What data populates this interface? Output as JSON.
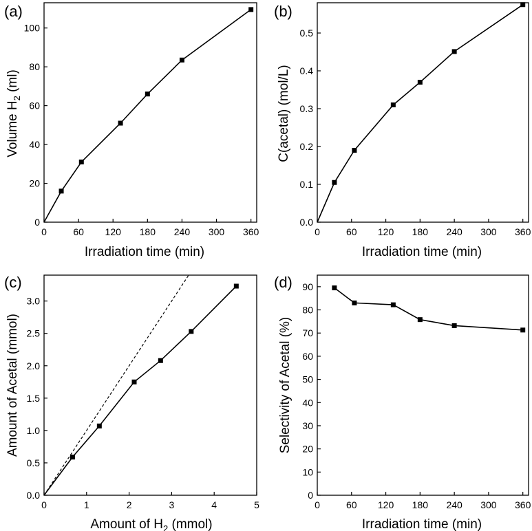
{
  "chart_data": [
    {
      "id": "a",
      "panel_label": "(a)",
      "type": "line",
      "xlabel": "Irradiation time (min)",
      "ylabel": {
        "main": "Volume H",
        "sub": "2",
        "tail": " (ml)"
      },
      "xlim": [
        0,
        370
      ],
      "ylim": [
        0,
        113
      ],
      "xticks": [
        0,
        60,
        120,
        180,
        240,
        300,
        360
      ],
      "xtick_labels": [
        "0",
        "60",
        "120",
        "180",
        "240",
        "300",
        "360"
      ],
      "yticks": [
        0,
        20,
        40,
        60,
        80,
        100
      ],
      "ytick_labels": [
        "0",
        "20",
        "40",
        "60",
        "80",
        "100"
      ],
      "x": [
        0,
        30,
        65,
        133,
        180,
        240,
        360
      ],
      "y": [
        0,
        16,
        31,
        51,
        66,
        83.5,
        109.5
      ],
      "markers_from_index": 1
    },
    {
      "id": "b",
      "panel_label": "(b)",
      "type": "line",
      "xlabel": "Irradiation time (min)",
      "ylabel": {
        "main": "C(acetal) (mol/L)",
        "sub": "",
        "tail": ""
      },
      "xlim": [
        0,
        370
      ],
      "ylim": [
        0,
        0.58
      ],
      "xticks": [
        0,
        60,
        120,
        180,
        240,
        300,
        360
      ],
      "xtick_labels": [
        "0",
        "60",
        "120",
        "180",
        "240",
        "300",
        "360"
      ],
      "yticks": [
        0,
        0.1,
        0.2,
        0.3,
        0.4,
        0.5
      ],
      "ytick_labels": [
        "0.0",
        "0.1",
        "0.2",
        "0.3",
        "0.4",
        "0.5"
      ],
      "x": [
        0,
        30,
        65,
        133,
        180,
        240,
        360
      ],
      "y": [
        0,
        0.105,
        0.19,
        0.31,
        0.37,
        0.451,
        0.575
      ],
      "markers_from_index": 1
    },
    {
      "id": "c",
      "panel_label": "(c)",
      "type": "line",
      "xlabel": {
        "main": "Amount of H",
        "sub": "2",
        "tail": " (mmol)"
      },
      "ylabel": {
        "main": "Amount of Acetal (mmol)",
        "sub": "",
        "tail": ""
      },
      "xlim": [
        0,
        5
      ],
      "ylim": [
        0,
        3.4
      ],
      "xticks": [
        0,
        1,
        2,
        3,
        4,
        5
      ],
      "xtick_labels": [
        "0",
        "1",
        "2",
        "3",
        "4",
        "5"
      ],
      "yticks": [
        0,
        0.5,
        1.0,
        1.5,
        2.0,
        2.5,
        3.0
      ],
      "ytick_labels": [
        "0.0",
        "0.5",
        "1.0",
        "1.5",
        "2.0",
        "2.5",
        "3.0"
      ],
      "x": [
        0,
        0.67,
        1.3,
        2.12,
        2.74,
        3.46,
        4.52
      ],
      "y": [
        0,
        0.59,
        1.07,
        1.75,
        2.08,
        2.53,
        3.23
      ],
      "markers_from_index": 1,
      "reference_line": {
        "x": [
          0,
          3.4
        ],
        "y": [
          0,
          3.4
        ],
        "style": "dashed"
      }
    },
    {
      "id": "d",
      "panel_label": "(d)",
      "type": "line",
      "xlabel": "Irradiation time (min)",
      "ylabel": {
        "main": "Selectivity of Acetal (%)",
        "sub": "",
        "tail": ""
      },
      "xlim": [
        0,
        370
      ],
      "ylim": [
        0,
        95
      ],
      "xticks": [
        0,
        60,
        120,
        180,
        240,
        300,
        360
      ],
      "xtick_labels": [
        "0",
        "60",
        "120",
        "180",
        "240",
        "300",
        "360"
      ],
      "yticks": [
        0,
        10,
        20,
        30,
        40,
        50,
        60,
        70,
        80,
        90
      ],
      "ytick_labels": [
        "0",
        "10",
        "20",
        "30",
        "40",
        "50",
        "60",
        "70",
        "80",
        "90"
      ],
      "x": [
        30,
        65,
        133,
        180,
        240,
        360
      ],
      "y": [
        89.5,
        83,
        82.2,
        75.8,
        73.2,
        71.3
      ],
      "markers_from_index": 0
    }
  ]
}
